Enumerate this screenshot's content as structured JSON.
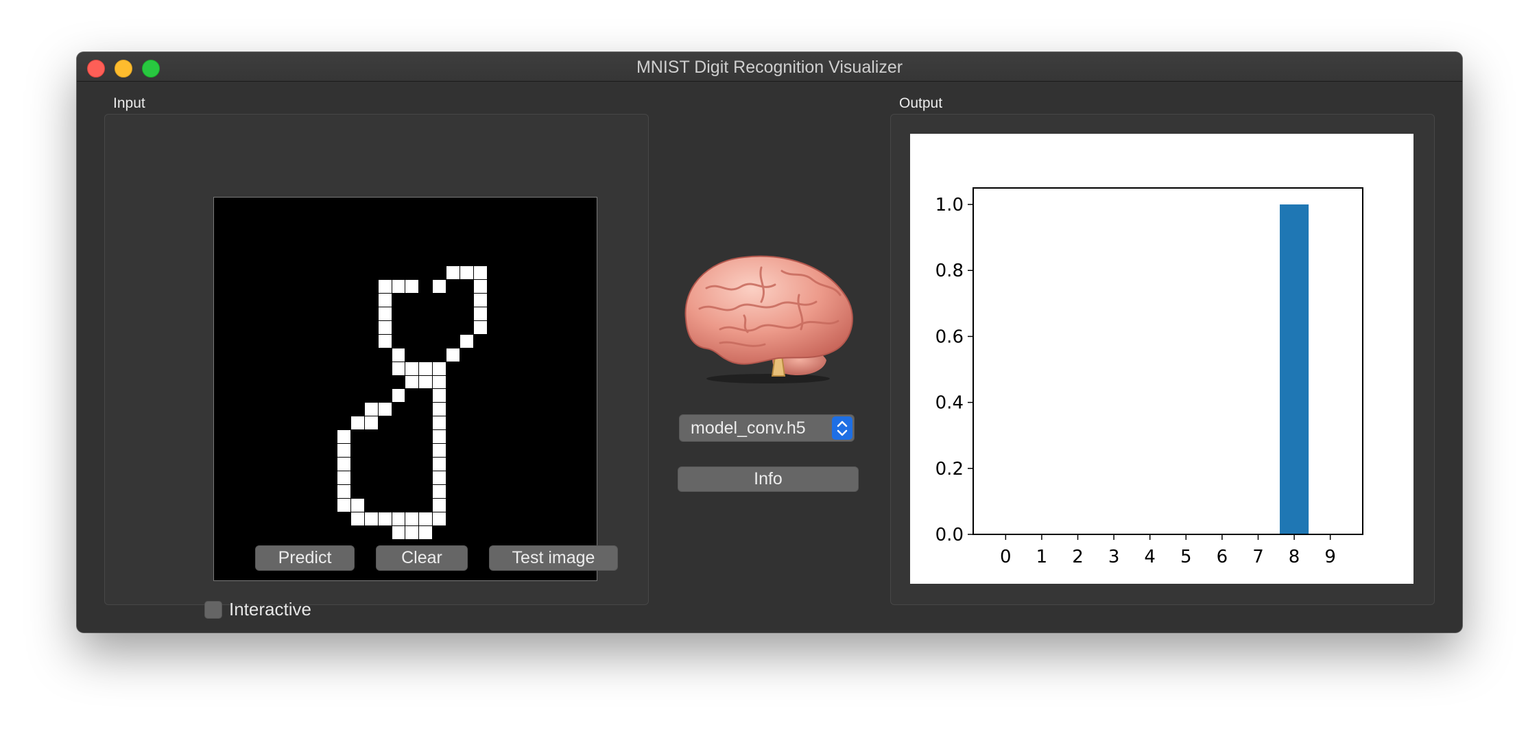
{
  "window": {
    "title": "MNIST Digit Recognition Visualizer"
  },
  "input_panel": {
    "label": "Input",
    "grid_size": 28,
    "pixels_on": [
      [
        5,
        17
      ],
      [
        5,
        18
      ],
      [
        5,
        19
      ],
      [
        6,
        12
      ],
      [
        6,
        13
      ],
      [
        6,
        14
      ],
      [
        6,
        16
      ],
      [
        6,
        19
      ],
      [
        7,
        12
      ],
      [
        7,
        19
      ],
      [
        8,
        12
      ],
      [
        8,
        19
      ],
      [
        9,
        12
      ],
      [
        9,
        19
      ],
      [
        10,
        12
      ],
      [
        10,
        18
      ],
      [
        11,
        13
      ],
      [
        11,
        17
      ],
      [
        12,
        13
      ],
      [
        12,
        14
      ],
      [
        12,
        15
      ],
      [
        12,
        16
      ],
      [
        13,
        14
      ],
      [
        13,
        15
      ],
      [
        13,
        16
      ],
      [
        14,
        13
      ],
      [
        14,
        16
      ],
      [
        15,
        11
      ],
      [
        15,
        12
      ],
      [
        15,
        16
      ],
      [
        16,
        10
      ],
      [
        16,
        11
      ],
      [
        16,
        16
      ],
      [
        17,
        9
      ],
      [
        17,
        16
      ],
      [
        18,
        9
      ],
      [
        18,
        16
      ],
      [
        19,
        9
      ],
      [
        19,
        16
      ],
      [
        20,
        9
      ],
      [
        20,
        16
      ],
      [
        21,
        9
      ],
      [
        21,
        16
      ],
      [
        22,
        9
      ],
      [
        22,
        10
      ],
      [
        22,
        16
      ],
      [
        23,
        10
      ],
      [
        23,
        11
      ],
      [
        23,
        12
      ],
      [
        23,
        13
      ],
      [
        23,
        14
      ],
      [
        23,
        15
      ],
      [
        23,
        16
      ],
      [
        24,
        13
      ],
      [
        24,
        14
      ],
      [
        24,
        15
      ]
    ],
    "interactive_label": "Interactive",
    "interactive_checked": false,
    "predict_label": "Predict",
    "clear_label": "Clear",
    "test_image_label": "Test image"
  },
  "middle": {
    "model_selected": "model_conv.h5",
    "info_label": "Info",
    "icon": "brain-icon"
  },
  "output_panel": {
    "label": "Output"
  },
  "chart_data": {
    "type": "bar",
    "categories": [
      "0",
      "1",
      "2",
      "3",
      "4",
      "5",
      "6",
      "7",
      "8",
      "9"
    ],
    "values": [
      0,
      0,
      0,
      0,
      0,
      0,
      0,
      0,
      1.0,
      0
    ],
    "yticks": [
      "0.0",
      "0.2",
      "0.4",
      "0.6",
      "0.8",
      "1.0"
    ],
    "ylim": [
      0,
      1.05
    ],
    "bar_color": "#1f77b4",
    "title": "",
    "xlabel": "",
    "ylabel": "",
    "grid": false
  },
  "colors": {
    "window_bg": "#323232",
    "accent": "#1e6fe4"
  }
}
